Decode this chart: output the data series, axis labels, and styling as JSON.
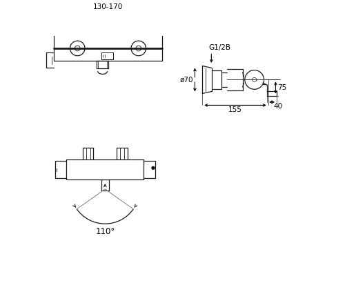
{
  "bg_color": "#ffffff",
  "lc": "#1a1a1a",
  "fs": 7.5,
  "lw": 0.9
}
